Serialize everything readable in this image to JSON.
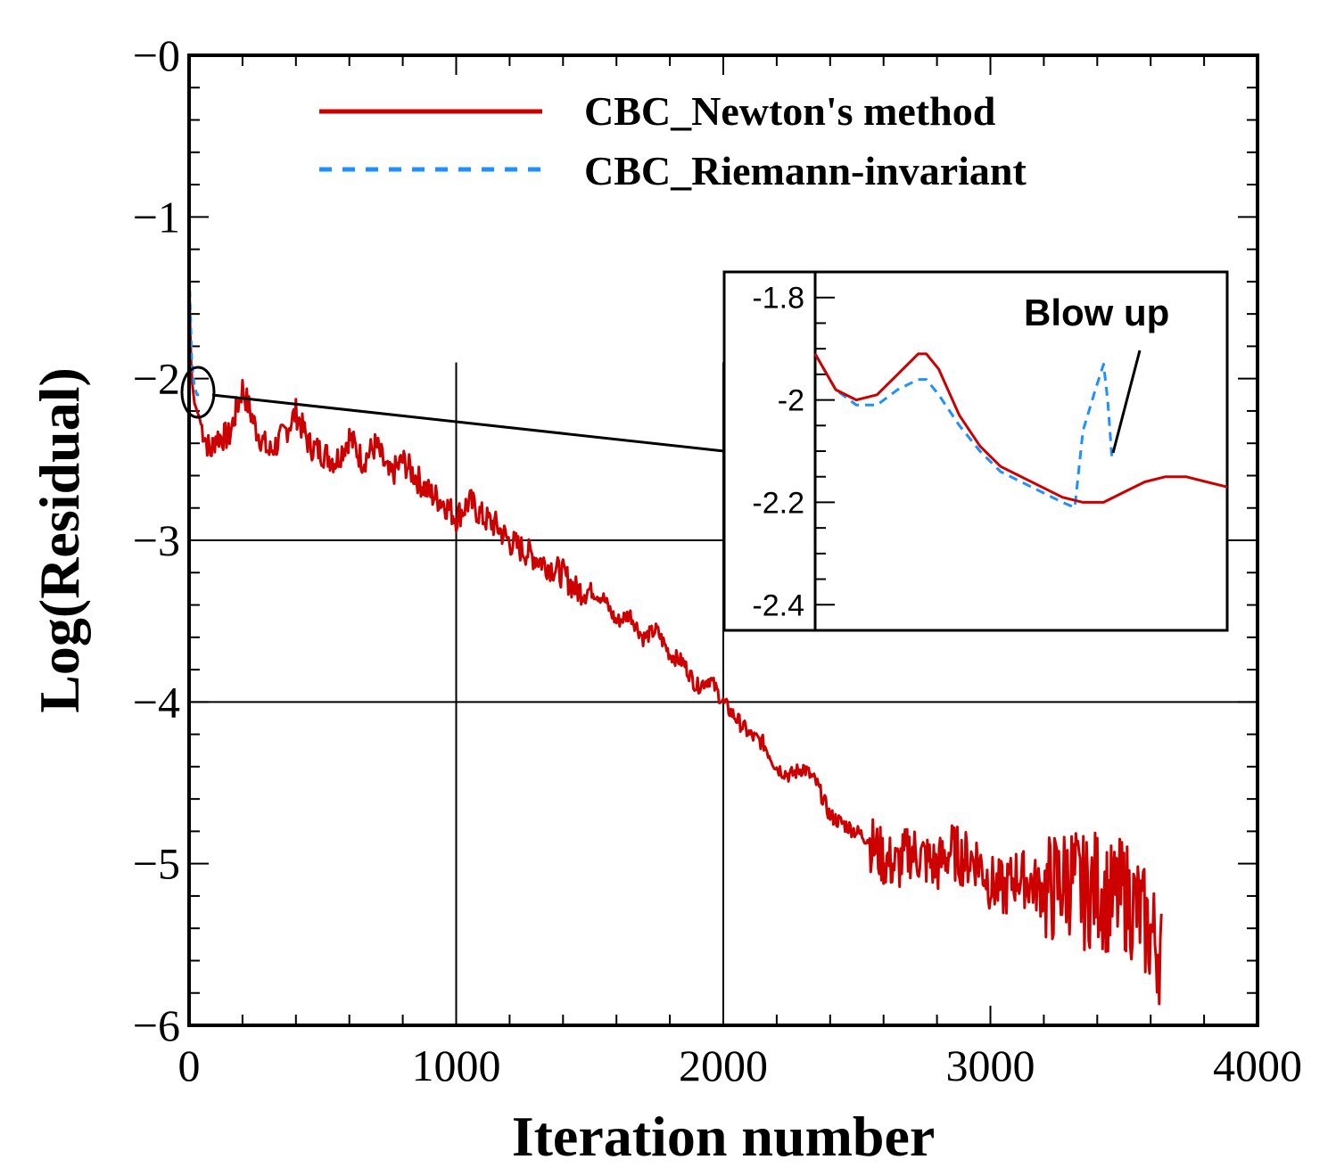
{
  "chart_data": [
    {
      "type": "line",
      "xlabel": "Iteration number",
      "ylabel": "Log(Residual)",
      "xlim": [
        0,
        4000
      ],
      "ylim": [
        -6,
        0
      ],
      "xticks": [
        0,
        1000,
        2000,
        3000,
        4000
      ],
      "xtick_labels": [
        "0",
        "1000",
        "2000",
        "3000",
        "4000"
      ],
      "yticks": [
        0,
        -1,
        -2,
        -3,
        -4,
        -5,
        -6
      ],
      "ytick_labels": [
        "-0",
        "-1",
        "-2",
        "-3",
        "-4",
        "-5",
        "-6"
      ],
      "gridlines": {
        "x": [
          1000,
          2000
        ],
        "y": [
          -3,
          -4
        ]
      },
      "legend_position": "top-right",
      "colors": {
        "newton": "#cc0000",
        "riemann": "#1e90ff"
      },
      "series": [
        {
          "name": "CBC_Newton's method",
          "style": "solid",
          "x": [
            0,
            5,
            10,
            20,
            30,
            40,
            60,
            80,
            100,
            150,
            200,
            250,
            300,
            350,
            400,
            450,
            500,
            550,
            600,
            650,
            700,
            750,
            800,
            850,
            900,
            950,
            1000,
            1050,
            1100,
            1150,
            1200,
            1250,
            1300,
            1350,
            1400,
            1450,
            1500,
            1550,
            1600,
            1650,
            1700,
            1750,
            1800,
            1850,
            1900,
            1950,
            2000,
            2050,
            2100,
            2150,
            2200,
            2250,
            2300,
            2350,
            2400,
            2450,
            2500,
            2550,
            2600,
            2650,
            2700,
            2750,
            2800,
            2850,
            2900,
            2950,
            3000,
            3050,
            3100,
            3150,
            3200,
            3250,
            3300,
            3350,
            3400,
            3450,
            3500,
            3550,
            3600,
            3640
          ],
          "y": [
            -1.3,
            -1.8,
            -2.0,
            -2.15,
            -2.2,
            -2.25,
            -2.35,
            -2.45,
            -2.35,
            -2.35,
            -2.05,
            -2.3,
            -2.45,
            -2.35,
            -2.2,
            -2.4,
            -2.45,
            -2.5,
            -2.35,
            -2.5,
            -2.4,
            -2.6,
            -2.5,
            -2.6,
            -2.7,
            -2.75,
            -2.85,
            -2.75,
            -2.85,
            -2.9,
            -3.0,
            -3.05,
            -3.1,
            -3.15,
            -3.2,
            -3.3,
            -3.3,
            -3.35,
            -3.5,
            -3.45,
            -3.6,
            -3.55,
            -3.7,
            -3.75,
            -3.9,
            -3.85,
            -4.0,
            -4.1,
            -4.2,
            -4.25,
            -4.4,
            -4.45,
            -4.4,
            -4.5,
            -4.7,
            -4.75,
            -4.8,
            -4.85,
            -4.95,
            -5.0,
            -4.9,
            -4.95,
            -5.0,
            -4.9,
            -4.95,
            -4.95,
            -5.1,
            -5.15,
            -5.05,
            -5.1,
            -5.15,
            -5.1,
            -5.05,
            -5.15,
            -5.1,
            -5.2,
            -5.15,
            -5.25,
            -5.4,
            -5.5
          ],
          "noise_band": {
            "x": [
              2550,
              3640
            ],
            "amplitude": 0.3
          }
        },
        {
          "name": "CBC_Riemann-invariant",
          "style": "dashed",
          "x": [
            0,
            5,
            10,
            20,
            30,
            40
          ],
          "y": [
            -1.3,
            -1.6,
            -1.9,
            -2.05,
            -2.1,
            -2.1
          ]
        }
      ]
    },
    {
      "type": "line",
      "subtitle": "inset",
      "xlim": [
        0,
        1
      ],
      "ylim": [
        -2.45,
        -1.75
      ],
      "yticks": [
        -1.8,
        -2.0,
        -2.2,
        -2.4
      ],
      "ytick_labels": [
        "-1.8",
        "-2",
        "-2.2",
        "-2.4"
      ],
      "annotation": "Blow up",
      "series": [
        {
          "name": "CBC_Newton's method",
          "style": "solid",
          "x": [
            0.0,
            0.05,
            0.1,
            0.15,
            0.2,
            0.25,
            0.27,
            0.3,
            0.35,
            0.4,
            0.45,
            0.5,
            0.55,
            0.6,
            0.65,
            0.7,
            0.75,
            0.8,
            0.85,
            0.9,
            0.95,
            1.0
          ],
          "y": [
            -1.91,
            -1.98,
            -2.0,
            -1.99,
            -1.95,
            -1.91,
            -1.91,
            -1.94,
            -2.03,
            -2.09,
            -2.13,
            -2.15,
            -2.17,
            -2.19,
            -2.2,
            -2.2,
            -2.18,
            -2.16,
            -2.15,
            -2.15,
            -2.16,
            -2.17
          ]
        },
        {
          "name": "CBC_Riemann-invariant",
          "style": "dashed",
          "x": [
            0.0,
            0.05,
            0.1,
            0.15,
            0.2,
            0.25,
            0.27,
            0.3,
            0.35,
            0.4,
            0.45,
            0.5,
            0.55,
            0.6,
            0.63,
            0.65,
            0.68,
            0.7,
            0.71,
            0.72
          ],
          "y": [
            -1.91,
            -1.98,
            -2.01,
            -2.01,
            -1.98,
            -1.96,
            -1.96,
            -1.99,
            -2.05,
            -2.1,
            -2.14,
            -2.16,
            -2.18,
            -2.2,
            -2.21,
            -2.06,
            -1.98,
            -1.93,
            -2.0,
            -2.11
          ]
        }
      ]
    }
  ]
}
